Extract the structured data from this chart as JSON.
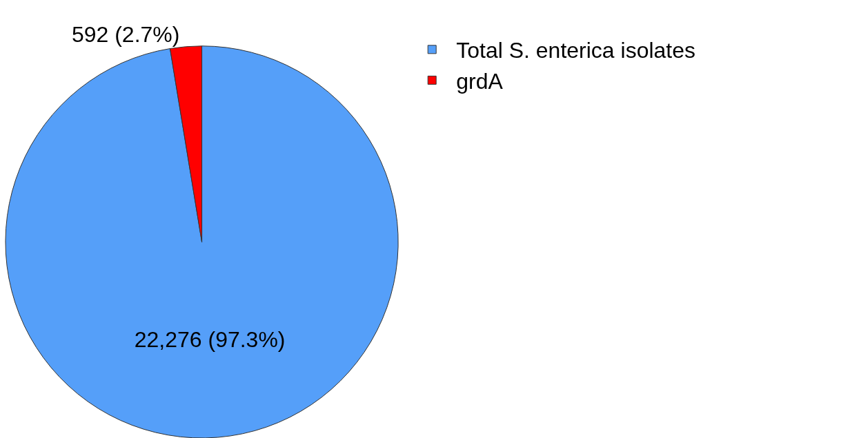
{
  "chart_data": {
    "type": "pie",
    "categories": [
      "Total S. enterica isolates",
      "grdA"
    ],
    "values": [
      22276,
      592
    ],
    "value_labels": [
      "22,276 (97.3%)",
      "592 (2.7%)"
    ],
    "colors": [
      "#559ff9",
      "#ff0000"
    ],
    "legend": "top right"
  }
}
